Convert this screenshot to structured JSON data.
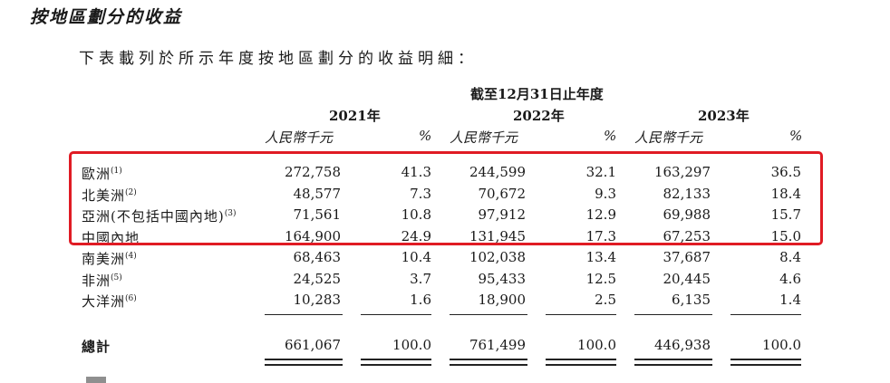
{
  "section_title": "按地區劃分的收益",
  "intro": "下表載列於所示年度按地區劃分的收益明細：",
  "period_header": "截至12月31日止年度",
  "years": [
    "2021年",
    "2022年",
    "2023年"
  ],
  "unit_currency": "人民幣千元",
  "unit_percent": "%",
  "rows": [
    {
      "label": "歐洲",
      "note": "(1)",
      "v2021": "272,758",
      "p2021": "41.3",
      "v2022": "244,599",
      "p2022": "32.1",
      "v2023": "163,297",
      "p2023": "36.5"
    },
    {
      "label": "北美洲",
      "note": "(2)",
      "v2021": "48,577",
      "p2021": "7.3",
      "v2022": "70,672",
      "p2022": "9.3",
      "v2023": "82,133",
      "p2023": "18.4"
    },
    {
      "label": "亞洲(不包括中國內地)",
      "note": "(3)",
      "v2021": "71,561",
      "p2021": "10.8",
      "v2022": "97,912",
      "p2022": "12.9",
      "v2023": "69,988",
      "p2023": "15.7"
    },
    {
      "label": "中國內地",
      "note": "",
      "v2021": "164,900",
      "p2021": "24.9",
      "v2022": "131,945",
      "p2022": "17.3",
      "v2023": "67,253",
      "p2023": "15.0"
    },
    {
      "label": "南美洲",
      "note": "(4)",
      "v2021": "68,463",
      "p2021": "10.4",
      "v2022": "102,038",
      "p2022": "13.4",
      "v2023": "37,687",
      "p2023": "8.4"
    },
    {
      "label": "非洲",
      "note": "(5)",
      "v2021": "24,525",
      "p2021": "3.7",
      "v2022": "95,433",
      "p2022": "12.5",
      "v2023": "20,445",
      "p2023": "4.6"
    },
    {
      "label": "大洋洲",
      "note": "(6)",
      "v2021": "10,283",
      "p2021": "1.6",
      "v2022": "18,900",
      "p2022": "2.5",
      "v2023": "6,135",
      "p2023": "1.4"
    }
  ],
  "total": {
    "label": "總計",
    "v2021": "661,067",
    "p2021": "100.0",
    "v2022": "761,499",
    "p2022": "100.0",
    "v2023": "446,938",
    "p2023": "100.0"
  },
  "highlight_color": "#e01b24"
}
